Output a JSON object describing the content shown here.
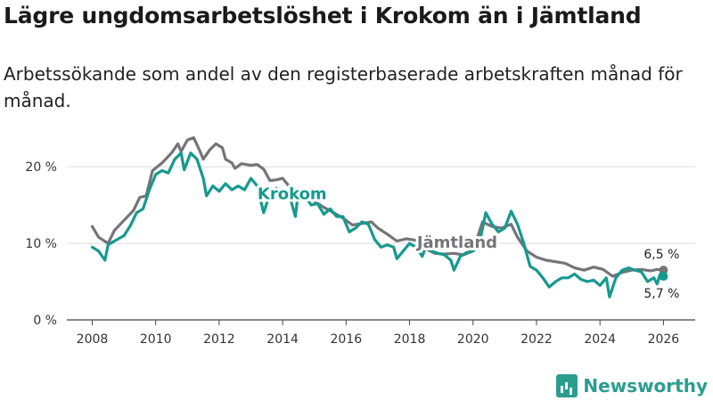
{
  "title": "Lägre ungdomsarbetslöshet i Krokom än i Jämtland",
  "subtitle": "Arbetssökande som andel av den registerbaserade arbetskraften månad för månad.",
  "brand": {
    "name": "Newsworthy"
  },
  "colors": {
    "krokom": "#159a8f",
    "jamtland": "#757478",
    "grid": "#dcdcdc"
  },
  "chart_data": {
    "type": "line",
    "title": "Lägre ungdomsarbetslöshet i Krokom än i Jämtland",
    "xlabel": "",
    "ylabel": "",
    "xlim": [
      2007.2,
      2027.0
    ],
    "ylim": [
      0,
      22
    ],
    "x_ticks": [
      2008,
      2010,
      2012,
      2014,
      2016,
      2018,
      2020,
      2022,
      2024,
      2026
    ],
    "y_ticks": [
      {
        "value": 0,
        "label": "0 %"
      },
      {
        "value": 10,
        "label": "10 %"
      },
      {
        "value": 20,
        "label": "20 %"
      }
    ],
    "series": [
      {
        "name": "Jämtland",
        "label": "Jämtland",
        "end_label": "6,5 %",
        "points": [
          [
            2008.0,
            12.2
          ],
          [
            2008.2,
            10.8
          ],
          [
            2008.5,
            10.0
          ],
          [
            2008.7,
            11.7
          ],
          [
            2009.0,
            13.0
          ],
          [
            2009.3,
            14.3
          ],
          [
            2009.5,
            16.0
          ],
          [
            2009.7,
            16.2
          ],
          [
            2009.9,
            19.5
          ],
          [
            2010.2,
            20.5
          ],
          [
            2010.5,
            21.8
          ],
          [
            2010.7,
            23.0
          ],
          [
            2010.8,
            22.0
          ],
          [
            2011.0,
            23.5
          ],
          [
            2011.2,
            23.8
          ],
          [
            2011.4,
            22.0
          ],
          [
            2011.5,
            21.0
          ],
          [
            2011.7,
            22.2
          ],
          [
            2011.9,
            23.0
          ],
          [
            2012.1,
            22.5
          ],
          [
            2012.2,
            21.0
          ],
          [
            2012.4,
            20.5
          ],
          [
            2012.5,
            19.8
          ],
          [
            2012.7,
            20.4
          ],
          [
            2013.0,
            20.2
          ],
          [
            2013.2,
            20.3
          ],
          [
            2013.4,
            19.7
          ],
          [
            2013.6,
            18.2
          ],
          [
            2013.8,
            18.3
          ],
          [
            2014.0,
            18.5
          ],
          [
            2014.2,
            17.5
          ],
          [
            2014.5,
            16.5
          ],
          [
            2014.8,
            16.0
          ],
          [
            2015.0,
            15.5
          ],
          [
            2015.3,
            14.7
          ],
          [
            2015.6,
            14.0
          ],
          [
            2015.9,
            13.3
          ],
          [
            2016.2,
            12.4
          ],
          [
            2016.5,
            12.6
          ],
          [
            2016.8,
            12.8
          ],
          [
            2017.0,
            12.0
          ],
          [
            2017.3,
            11.2
          ],
          [
            2017.6,
            10.3
          ],
          [
            2017.9,
            10.6
          ],
          [
            2018.2,
            10.4
          ],
          [
            2018.5,
            9.3
          ],
          [
            2018.8,
            8.7
          ],
          [
            2019.1,
            8.6
          ],
          [
            2019.4,
            8.7
          ],
          [
            2019.7,
            8.5
          ],
          [
            2020.0,
            9.0
          ],
          [
            2020.3,
            12.8
          ],
          [
            2020.6,
            12.2
          ],
          [
            2020.9,
            12.0
          ],
          [
            2021.2,
            12.5
          ],
          [
            2021.4,
            10.8
          ],
          [
            2021.7,
            9.0
          ],
          [
            2022.0,
            8.2
          ],
          [
            2022.3,
            7.8
          ],
          [
            2022.6,
            7.6
          ],
          [
            2022.9,
            7.4
          ],
          [
            2023.2,
            6.8
          ],
          [
            2023.5,
            6.5
          ],
          [
            2023.8,
            6.9
          ],
          [
            2024.1,
            6.6
          ],
          [
            2024.4,
            5.7
          ],
          [
            2024.7,
            6.2
          ],
          [
            2025.0,
            6.5
          ],
          [
            2025.3,
            6.6
          ],
          [
            2025.6,
            6.4
          ],
          [
            2025.8,
            6.6
          ],
          [
            2026.0,
            6.5
          ]
        ]
      },
      {
        "name": "Krokom",
        "label": "Krokom",
        "end_label": "5,7 %",
        "points": [
          [
            2008.0,
            9.5
          ],
          [
            2008.2,
            9.0
          ],
          [
            2008.4,
            7.8
          ],
          [
            2008.5,
            9.8
          ],
          [
            2008.7,
            10.3
          ],
          [
            2009.0,
            11.0
          ],
          [
            2009.2,
            12.3
          ],
          [
            2009.4,
            14.0
          ],
          [
            2009.6,
            14.5
          ],
          [
            2009.8,
            17.0
          ],
          [
            2010.0,
            19.0
          ],
          [
            2010.2,
            19.5
          ],
          [
            2010.4,
            19.2
          ],
          [
            2010.6,
            21.0
          ],
          [
            2010.8,
            21.8
          ],
          [
            2010.9,
            19.6
          ],
          [
            2011.1,
            21.8
          ],
          [
            2011.3,
            21.0
          ],
          [
            2011.5,
            18.5
          ],
          [
            2011.6,
            16.2
          ],
          [
            2011.8,
            17.5
          ],
          [
            2012.0,
            16.8
          ],
          [
            2012.2,
            17.8
          ],
          [
            2012.4,
            17.0
          ],
          [
            2012.6,
            17.5
          ],
          [
            2012.8,
            17.0
          ],
          [
            2013.0,
            18.5
          ],
          [
            2013.2,
            17.5
          ],
          [
            2013.4,
            14.0
          ],
          [
            2013.6,
            16.5
          ],
          [
            2013.8,
            17.2
          ],
          [
            2014.0,
            16.8
          ],
          [
            2014.2,
            16.5
          ],
          [
            2014.4,
            13.5
          ],
          [
            2014.5,
            16.8
          ],
          [
            2014.7,
            16.2
          ],
          [
            2014.9,
            15.0
          ],
          [
            2015.1,
            15.2
          ],
          [
            2015.3,
            13.8
          ],
          [
            2015.5,
            14.5
          ],
          [
            2015.7,
            13.5
          ],
          [
            2015.9,
            13.5
          ],
          [
            2016.1,
            11.5
          ],
          [
            2016.3,
            12.0
          ],
          [
            2016.5,
            12.8
          ],
          [
            2016.7,
            12.5
          ],
          [
            2016.9,
            10.5
          ],
          [
            2017.1,
            9.5
          ],
          [
            2017.3,
            9.8
          ],
          [
            2017.5,
            9.5
          ],
          [
            2017.6,
            8.0
          ],
          [
            2017.8,
            9.0
          ],
          [
            2018.0,
            10.0
          ],
          [
            2018.2,
            9.5
          ],
          [
            2018.4,
            8.3
          ],
          [
            2018.5,
            9.4
          ],
          [
            2018.7,
            9.0
          ],
          [
            2018.9,
            8.7
          ],
          [
            2019.1,
            8.5
          ],
          [
            2019.3,
            7.8
          ],
          [
            2019.4,
            6.5
          ],
          [
            2019.6,
            8.3
          ],
          [
            2019.8,
            8.8
          ],
          [
            2020.0,
            9.0
          ],
          [
            2020.2,
            10.0
          ],
          [
            2020.4,
            14.0
          ],
          [
            2020.6,
            12.5
          ],
          [
            2020.8,
            11.5
          ],
          [
            2021.0,
            12.0
          ],
          [
            2021.2,
            14.2
          ],
          [
            2021.4,
            12.5
          ],
          [
            2021.6,
            10.0
          ],
          [
            2021.8,
            7.0
          ],
          [
            2022.0,
            6.5
          ],
          [
            2022.2,
            5.5
          ],
          [
            2022.4,
            4.3
          ],
          [
            2022.6,
            5.0
          ],
          [
            2022.8,
            5.5
          ],
          [
            2023.0,
            5.5
          ],
          [
            2023.2,
            6.0
          ],
          [
            2023.4,
            5.3
          ],
          [
            2023.6,
            5.0
          ],
          [
            2023.8,
            5.2
          ],
          [
            2024.0,
            4.5
          ],
          [
            2024.2,
            5.5
          ],
          [
            2024.3,
            3.0
          ],
          [
            2024.5,
            5.5
          ],
          [
            2024.7,
            6.5
          ],
          [
            2024.9,
            6.8
          ],
          [
            2025.1,
            6.5
          ],
          [
            2025.3,
            6.3
          ],
          [
            2025.5,
            5.0
          ],
          [
            2025.7,
            5.5
          ],
          [
            2025.8,
            4.7
          ],
          [
            2025.9,
            6.0
          ],
          [
            2026.0,
            5.7
          ]
        ]
      }
    ]
  }
}
